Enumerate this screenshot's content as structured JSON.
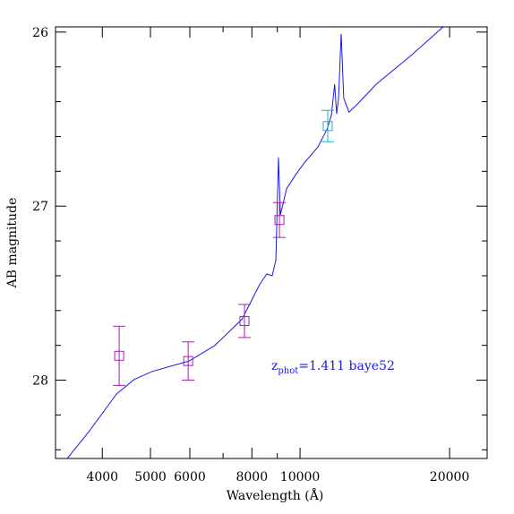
{
  "chart_data": {
    "type": "sed",
    "x_label": "Wavelength (Å)",
    "y_label": "AB magnitude",
    "annotation": {
      "base": "z",
      "subscript": "phot",
      "rest": "=1.411 baye52",
      "color": "#1a1ae6"
    },
    "xscale": "log",
    "xlim": [
      3220,
      23800
    ],
    "ylim": [
      25.97,
      28.45
    ],
    "xticks": [
      4000,
      5000,
      6000,
      8000,
      10000,
      20000
    ],
    "yticks": [
      26,
      27,
      28
    ],
    "xminorticks": [
      7000,
      9000
    ],
    "yminorticks": [
      26.2,
      26.4,
      26.6,
      26.8,
      27.2,
      27.4,
      27.6,
      27.8,
      28.2,
      28.4
    ],
    "model": {
      "color": "#1a1ae6",
      "x": [
        3400,
        3772,
        4270,
        4642,
        5043,
        5980,
        6743,
        7640,
        8296,
        8570,
        8790,
        8940,
        9050,
        9130,
        9397,
        9795,
        10210,
        10865,
        11325,
        11560,
        11740,
        11850,
        11955,
        12100,
        12245,
        12550,
        13090,
        14230,
        16800,
        19410
      ],
      "values": [
        28.45,
        28.29,
        28.08,
        27.995,
        27.95,
        27.89,
        27.8,
        27.65,
        27.45,
        27.39,
        27.4,
        27.31,
        26.72,
        27.05,
        26.9,
        26.82,
        26.75,
        26.66,
        26.56,
        26.48,
        26.3,
        26.47,
        26.38,
        26.01,
        26.38,
        26.46,
        26.41,
        26.3,
        26.13,
        25.97
      ]
    },
    "series": [
      {
        "color": "#a61fb0",
        "x": [
          4325,
          5955,
          7730,
          9090
        ],
        "values": [
          27.86,
          27.89,
          27.66,
          27.08
        ],
        "errors": [
          0.17,
          0.11,
          0.095,
          0.1
        ]
      },
      {
        "color": "#1fb0c0",
        "x": [
          11370
        ],
        "values": [
          26.54
        ],
        "errors": [
          0.09
        ]
      }
    ]
  }
}
